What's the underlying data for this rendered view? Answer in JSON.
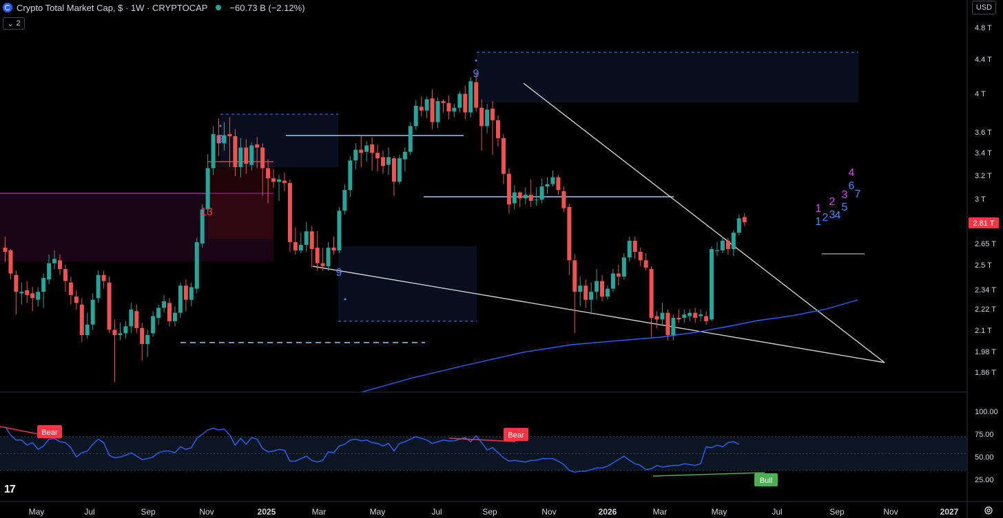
{
  "header": {
    "title": "Crypto Total Market Cap, $ · 1W · CRYPTOCAP",
    "change": "−60.73 B (−2.12%)",
    "collapse_count": "2",
    "currency": "USD"
  },
  "chart_data": {
    "type": "candlestick",
    "title": "Crypto Total Market Cap, $ · 1W · CRYPTOCAP",
    "price_axis_ticks": [
      "4.8 T",
      "4.4 T",
      "4 T",
      "3.6 T",
      "3.4 T",
      "3.2 T",
      "3 T",
      "2.65 T",
      "2.5 T",
      "2.34 T",
      "2.22 T",
      "2.1 T",
      "1.98 T",
      "1.86 T"
    ],
    "price_scale": "log",
    "last_price_label": "2.81 T",
    "time_axis_ticks": [
      "May",
      "Jul",
      "Sep",
      "Nov",
      "2025",
      "Mar",
      "May",
      "Jul",
      "Sep",
      "Nov",
      "2026",
      "Mar",
      "May",
      "Jul",
      "Sep",
      "Nov",
      "2027"
    ],
    "colors": {
      "up": "#26a69a",
      "down": "#ef5350",
      "ma": "#2962ff",
      "rsi": "#2962ff",
      "last_price": "#f23645"
    },
    "candles": [
      [
        2.62,
        2.59,
        2.7,
        2.52
      ],
      [
        2.6,
        2.44,
        2.61,
        2.4
      ],
      [
        2.43,
        2.32,
        2.46,
        2.18
      ],
      [
        2.31,
        2.32,
        2.38,
        2.24
      ],
      [
        2.33,
        2.3,
        2.39,
        2.25
      ],
      [
        2.31,
        2.28,
        2.35,
        2.2
      ],
      [
        2.27,
        2.32,
        2.35,
        2.23
      ],
      [
        2.32,
        2.41,
        2.44,
        2.22
      ],
      [
        2.4,
        2.51,
        2.57,
        2.37
      ],
      [
        2.51,
        2.54,
        2.6,
        2.47
      ],
      [
        2.53,
        2.47,
        2.57,
        2.43
      ],
      [
        2.47,
        2.39,
        2.5,
        2.32
      ],
      [
        2.38,
        2.3,
        2.42,
        2.24
      ],
      [
        2.29,
        2.25,
        2.33,
        2.21
      ],
      [
        2.24,
        2.06,
        2.28,
        2.02
      ],
      [
        2.06,
        2.12,
        2.19,
        2.04
      ],
      [
        2.12,
        2.27,
        2.31,
        2.09
      ],
      [
        2.28,
        2.43,
        2.46,
        2.25
      ],
      [
        2.43,
        2.39,
        2.46,
        2.34
      ],
      [
        2.38,
        2.09,
        2.42,
        2.07
      ],
      [
        2.09,
        2.06,
        2.15,
        1.81
      ],
      [
        2.06,
        2.07,
        2.13,
        2.03
      ],
      [
        2.07,
        2.11,
        2.14,
        2.04
      ],
      [
        2.11,
        2.21,
        2.25,
        2.07
      ],
      [
        2.2,
        2.1,
        2.24,
        2.07
      ],
      [
        2.1,
        2.01,
        2.13,
        1.92
      ],
      [
        2.01,
        2.06,
        2.09,
        1.94
      ],
      [
        2.07,
        2.17,
        2.2,
        2.05
      ],
      [
        2.16,
        2.22,
        2.24,
        2.12
      ],
      [
        2.22,
        2.26,
        2.3,
        2.19
      ],
      [
        2.25,
        2.14,
        2.28,
        2.11
      ],
      [
        2.14,
        2.19,
        2.23,
        2.11
      ],
      [
        2.19,
        2.36,
        2.38,
        2.16
      ],
      [
        2.36,
        2.27,
        2.4,
        2.2
      ],
      [
        2.27,
        2.35,
        2.38,
        2.23
      ],
      [
        2.34,
        2.66,
        2.69,
        2.31
      ],
      [
        2.65,
        2.91,
        2.95,
        2.62
      ],
      [
        2.91,
        3.26,
        3.39,
        2.88
      ],
      [
        3.26,
        3.58,
        3.66,
        3.2
      ],
      [
        3.57,
        3.49,
        3.74,
        3.37
      ],
      [
        3.49,
        3.57,
        3.7,
        3.42
      ],
      [
        3.58,
        3.56,
        3.75,
        3.27
      ],
      [
        3.56,
        3.27,
        3.63,
        3.19
      ],
      [
        3.27,
        3.45,
        3.54,
        3.18
      ],
      [
        3.45,
        3.3,
        3.53,
        3.21
      ],
      [
        3.29,
        3.47,
        3.5,
        3.24
      ],
      [
        3.48,
        3.45,
        3.55,
        3.26
      ],
      [
        3.45,
        3.26,
        3.49,
        3.02
      ],
      [
        3.26,
        3.17,
        3.34,
        2.96
      ],
      [
        3.17,
        3.14,
        3.25,
        3.09
      ],
      [
        3.14,
        3.16,
        3.2,
        2.98
      ],
      [
        3.15,
        3.13,
        3.22,
        3.06
      ],
      [
        3.13,
        2.66,
        3.16,
        2.59
      ],
      [
        2.66,
        2.6,
        2.77,
        2.57
      ],
      [
        2.6,
        2.64,
        2.73,
        2.58
      ],
      [
        2.64,
        2.74,
        2.81,
        2.59
      ],
      [
        2.74,
        2.61,
        2.78,
        2.48
      ],
      [
        2.62,
        2.51,
        2.74,
        2.46
      ],
      [
        2.51,
        2.49,
        2.62,
        2.46
      ],
      [
        2.49,
        2.62,
        2.66,
        2.46
      ],
      [
        2.62,
        2.6,
        2.7,
        2.57
      ],
      [
        2.6,
        2.9,
        2.93,
        2.58
      ],
      [
        2.9,
        3.07,
        3.12,
        2.87
      ],
      [
        3.07,
        3.33,
        3.37,
        3.01
      ],
      [
        3.33,
        3.43,
        3.49,
        3.25
      ],
      [
        3.43,
        3.4,
        3.56,
        3.27
      ],
      [
        3.41,
        3.47,
        3.51,
        3.32
      ],
      [
        3.48,
        3.4,
        3.55,
        3.24
      ],
      [
        3.4,
        3.35,
        3.48,
        3.23
      ],
      [
        3.36,
        3.28,
        3.42,
        3.21
      ],
      [
        3.29,
        3.36,
        3.45,
        3.2
      ],
      [
        3.35,
        3.14,
        3.37,
        3.02
      ],
      [
        3.14,
        3.35,
        3.38,
        3.12
      ],
      [
        3.34,
        3.41,
        3.45,
        3.23
      ],
      [
        3.41,
        3.66,
        3.7,
        3.38
      ],
      [
        3.66,
        3.87,
        3.93,
        3.62
      ],
      [
        3.86,
        3.82,
        3.97,
        3.76
      ],
      [
        3.82,
        3.94,
        3.97,
        3.74
      ],
      [
        3.95,
        3.7,
        4.05,
        3.63
      ],
      [
        3.7,
        3.92,
        3.96,
        3.64
      ],
      [
        3.92,
        3.9,
        3.94,
        3.8
      ],
      [
        3.9,
        3.81,
        3.98,
        3.73
      ],
      [
        3.81,
        3.85,
        3.89,
        3.75
      ],
      [
        3.85,
        4.0,
        4.03,
        3.8
      ],
      [
        4.0,
        3.8,
        4.09,
        3.73
      ],
      [
        3.8,
        4.14,
        4.19,
        3.75
      ],
      [
        4.13,
        3.85,
        4.25,
        3.81
      ],
      [
        3.85,
        3.66,
        3.94,
        3.42
      ],
      [
        3.66,
        3.83,
        3.89,
        3.59
      ],
      [
        3.84,
        3.72,
        3.92,
        3.38
      ],
      [
        3.72,
        3.54,
        3.77,
        3.46
      ],
      [
        3.54,
        3.21,
        3.58,
        3.12
      ],
      [
        3.21,
        2.95,
        3.26,
        2.88
      ],
      [
        2.96,
        3.05,
        3.11,
        2.91
      ],
      [
        3.05,
        3.0,
        3.06,
        2.93
      ],
      [
        3.0,
        3.03,
        3.09,
        2.95
      ],
      [
        3.03,
        2.98,
        3.16,
        2.93
      ],
      [
        2.99,
        2.99,
        3.09,
        2.94
      ],
      [
        2.99,
        3.1,
        3.17,
        2.96
      ],
      [
        3.1,
        3.12,
        3.18,
        3.04
      ],
      [
        3.12,
        3.18,
        3.24,
        3.1
      ],
      [
        3.18,
        3.07,
        3.2,
        3.03
      ],
      [
        3.06,
        2.92,
        3.1,
        2.89
      ],
      [
        2.93,
        2.53,
        2.96,
        2.43
      ],
      [
        2.53,
        2.32,
        2.57,
        2.07
      ],
      [
        2.32,
        2.36,
        2.42,
        2.23
      ],
      [
        2.36,
        2.27,
        2.4,
        2.22
      ],
      [
        2.27,
        2.32,
        2.38,
        2.18
      ],
      [
        2.32,
        2.39,
        2.47,
        2.27
      ],
      [
        2.39,
        2.29,
        2.43,
        2.26
      ],
      [
        2.29,
        2.34,
        2.36,
        2.27
      ],
      [
        2.34,
        2.44,
        2.47,
        2.32
      ],
      [
        2.44,
        2.42,
        2.5,
        2.36
      ],
      [
        2.42,
        2.55,
        2.58,
        2.4
      ],
      [
        2.55,
        2.67,
        2.7,
        2.52
      ],
      [
        2.67,
        2.59,
        2.7,
        2.54
      ],
      [
        2.59,
        2.53,
        2.62,
        2.49
      ],
      [
        2.53,
        2.48,
        2.58,
        2.46
      ],
      [
        2.47,
        2.16,
        2.49,
        2.05
      ],
      [
        2.17,
        2.15,
        2.2,
        2.1
      ],
      [
        2.15,
        2.19,
        2.25,
        2.12
      ],
      [
        2.19,
        2.06,
        2.21,
        2.03
      ],
      [
        2.06,
        2.16,
        2.18,
        2.03
      ],
      [
        2.16,
        2.15,
        2.21,
        2.13
      ],
      [
        2.16,
        2.18,
        2.21,
        2.13
      ],
      [
        2.17,
        2.19,
        2.21,
        2.14
      ],
      [
        2.19,
        2.16,
        2.22,
        2.13
      ],
      [
        2.17,
        2.18,
        2.21,
        2.14
      ],
      [
        2.17,
        2.14,
        2.2,
        2.12
      ],
      [
        2.15,
        2.61,
        2.63,
        2.14
      ],
      [
        2.6,
        2.6,
        2.66,
        2.56
      ],
      [
        2.6,
        2.67,
        2.7,
        2.58
      ],
      [
        2.67,
        2.61,
        2.69,
        2.57
      ],
      [
        2.61,
        2.73,
        2.75,
        2.56
      ],
      [
        2.73,
        2.84,
        2.87,
        2.71
      ],
      [
        2.85,
        2.81,
        2.88,
        2.78
      ]
    ],
    "moving_average": [
      [
        131,
        1.86
      ],
      [
        150,
        1.89
      ],
      [
        200,
        1.93
      ],
      [
        250,
        1.97
      ],
      [
        300,
        2.0
      ],
      [
        350,
        2.03
      ],
      [
        400,
        2.05
      ],
      [
        450,
        2.08
      ],
      [
        500,
        2.1
      ],
      [
        540,
        2.12
      ],
      [
        580,
        2.14
      ],
      [
        620,
        2.17
      ],
      [
        660,
        2.2
      ],
      [
        680,
        2.22
      ]
    ],
    "td_sequential_labels": [
      {
        "text": "9",
        "color": "#448aff",
        "x_index": 40,
        "price": 3.62
      },
      {
        "text": "13",
        "color": "#f23645",
        "x_index": 36,
        "price": 2.84
      },
      {
        "text": "9",
        "color": "#448aff",
        "x_index": 61,
        "price": 2.46
      },
      {
        "text": "9",
        "color": "#448aff",
        "x_index": 86,
        "price": 4.32
      },
      {
        "text": "1",
        "color": "#e040fb",
        "x_index": 147,
        "price": 2.96
      },
      {
        "text": "2",
        "color": "#e040fb",
        "x_index": 151,
        "price": 3.01
      },
      {
        "text": "3",
        "color": "#e040fb",
        "x_index": 153,
        "price": 3.06
      },
      {
        "text": "4",
        "color": "#e040fb",
        "x_index": 154,
        "price": 3.26
      },
      {
        "text": "6",
        "color": "#448aff",
        "x_index": 154,
        "price": 3.13
      },
      {
        "text": "7",
        "color": "#448aff",
        "x_index": 155,
        "price": 3.07
      },
      {
        "text": "5",
        "color": "#448aff",
        "x_index": 152,
        "price": 2.96
      },
      {
        "text": "1",
        "color": "#448aff",
        "x_index": 147,
        "price": 2.86
      },
      {
        "text": "2",
        "color": "#448aff",
        "x_index": 148,
        "price": 2.87
      },
      {
        "text": "3",
        "color": "#448aff",
        "x_index": 149,
        "price": 2.88
      },
      {
        "text": "4",
        "color": "#448aff",
        "x_index": 150,
        "price": 2.88
      }
    ],
    "rsi": {
      "ticks": [
        "100.00",
        "75.00",
        "50.00",
        "25.00"
      ],
      "values": [
        82,
        72,
        66,
        66,
        60,
        63,
        55,
        59,
        67,
        68,
        64,
        63,
        57,
        46,
        51,
        53,
        61,
        67,
        63,
        48,
        45,
        46,
        48,
        51,
        47,
        43,
        44,
        46,
        51,
        53,
        53,
        51,
        58,
        55,
        57,
        68,
        73,
        78,
        80,
        78,
        79,
        72,
        60,
        68,
        61,
        69,
        67,
        56,
        52,
        53,
        55,
        54,
        41,
        41,
        44,
        47,
        42,
        40,
        42,
        52,
        51,
        59,
        61,
        66,
        67,
        65,
        66,
        63,
        62,
        59,
        62,
        53,
        62,
        64,
        67,
        70,
        68,
        66,
        62,
        64,
        66,
        65,
        65,
        67,
        69,
        64,
        71,
        63,
        54,
        57,
        51,
        45,
        41,
        42,
        41,
        40,
        42,
        42,
        44,
        44,
        44,
        41,
        37,
        30,
        28,
        29,
        29,
        31,
        33,
        33,
        35,
        39,
        43,
        47,
        42,
        38,
        36,
        31,
        32,
        36,
        34,
        35,
        36,
        36,
        38,
        37,
        36,
        38,
        58,
        57,
        60,
        58,
        63,
        64,
        61
      ],
      "divergence_labels": [
        {
          "text": "Bear",
          "color": "#f23645"
        },
        {
          "text": "Bear",
          "color": "#f23645"
        },
        {
          "text": "Bull",
          "color": "#4caf50"
        }
      ]
    }
  }
}
